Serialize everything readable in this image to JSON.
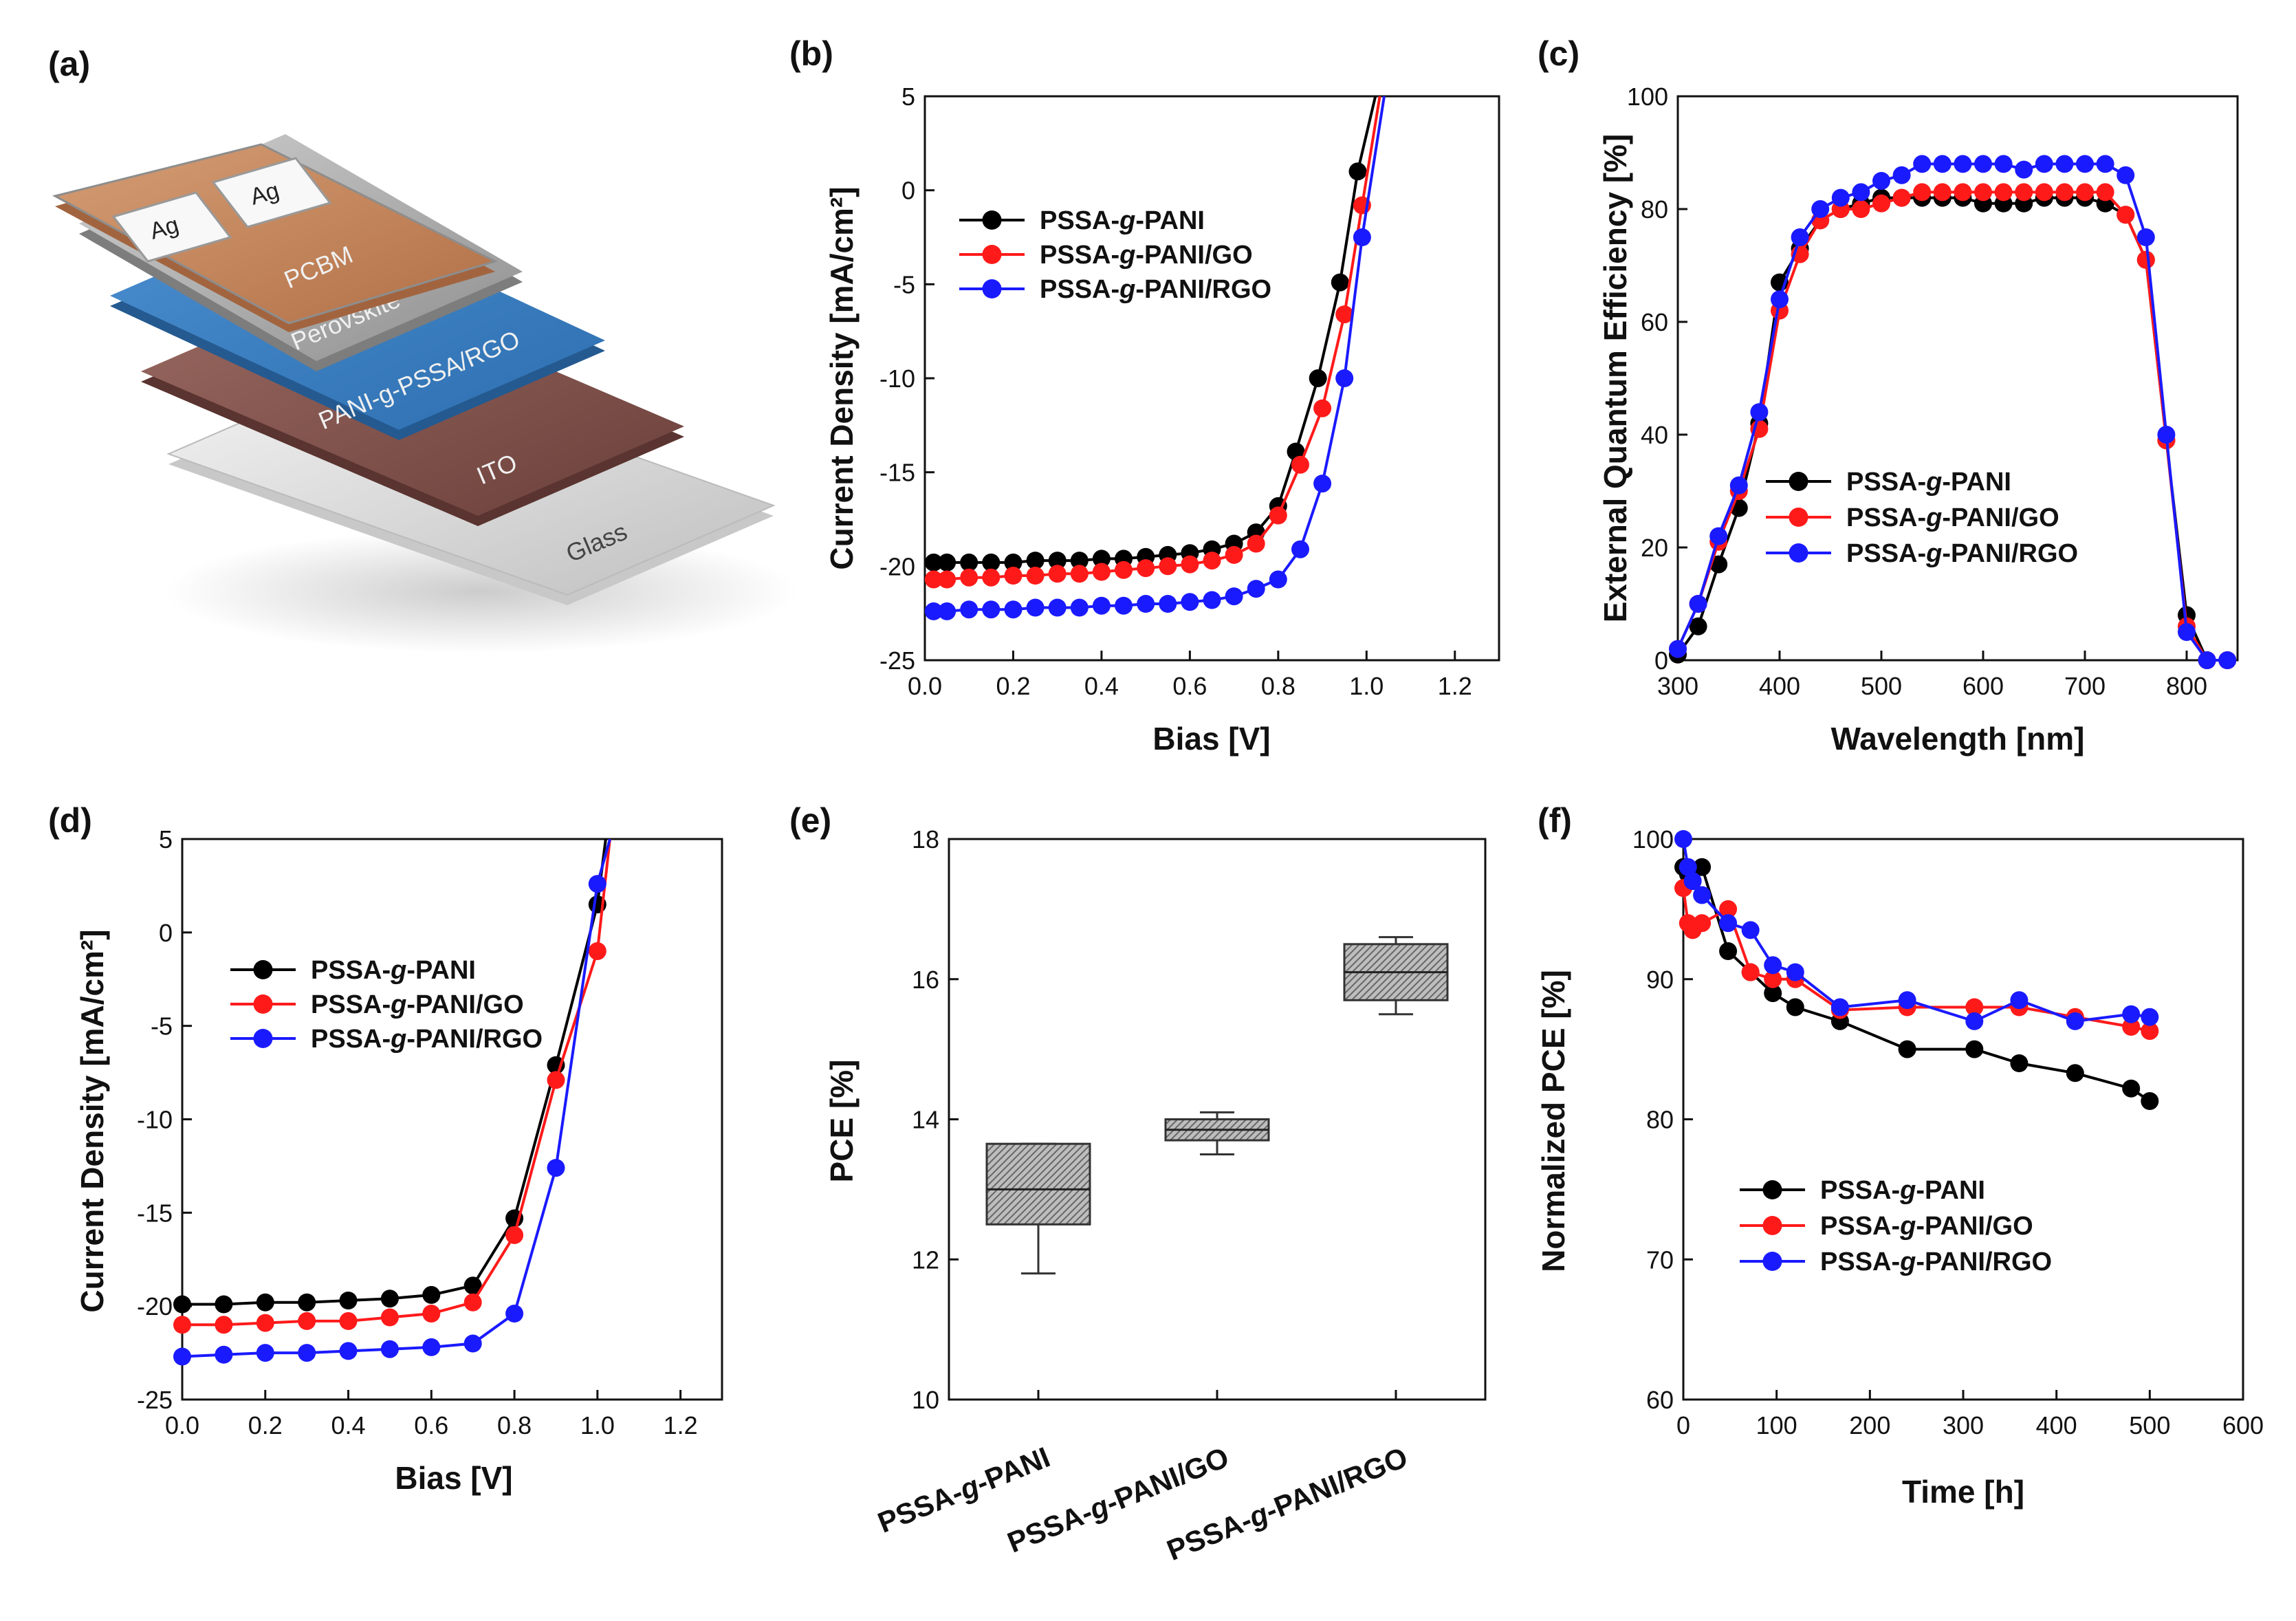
{
  "panels": {
    "a": "(a)",
    "b": "(b)",
    "c": "(c)",
    "d": "(d)",
    "e": "(e)",
    "f": "(f)"
  },
  "colors": {
    "black": "#000000",
    "red": "#ff1a1a",
    "blue": "#1a1aff",
    "box": "#b8b8b8"
  },
  "device": {
    "layers": [
      "Glass",
      "ITO",
      "PANI-g-PSSA/RGO",
      "Perovskite",
      "PCBM"
    ],
    "electrodes": [
      "Ag",
      "Ag"
    ]
  },
  "legend": {
    "s1_pre": "PSSA-",
    "s1_g": "g",
    "s1_post": "-PANI",
    "s2_pre": "PSSA-",
    "s2_g": "g",
    "s2_post": "-PANI/GO",
    "s3_pre": "PSSA-",
    "s3_g": "g",
    "s3_post": "-PANI/RGO"
  },
  "chart_data": [
    {
      "id": "b",
      "type": "line",
      "xlabel": "Bias [V]",
      "ylabel": "Current Density [mA/cm²]",
      "xlim": [
        0.0,
        1.3
      ],
      "ylim": [
        -25,
        5
      ],
      "xticks": [
        "0.0",
        "0.2",
        "0.4",
        "0.6",
        "0.8",
        "1.0",
        "1.2"
      ],
      "yticks": [
        "5",
        "0",
        "-5",
        "-10",
        "-15",
        "-20",
        "-25"
      ],
      "series": [
        {
          "name": "PSSA-g-PANI",
          "x": [
            0.02,
            0.05,
            0.1,
            0.15,
            0.2,
            0.25,
            0.3,
            0.35,
            0.4,
            0.45,
            0.5,
            0.55,
            0.6,
            0.65,
            0.7,
            0.75,
            0.8,
            0.84,
            0.89,
            0.94,
            0.98,
            1.02
          ],
          "y": [
            -19.8,
            -19.8,
            -19.8,
            -19.8,
            -19.8,
            -19.7,
            -19.7,
            -19.7,
            -19.6,
            -19.6,
            -19.5,
            -19.4,
            -19.3,
            -19.1,
            -18.8,
            -18.2,
            -16.8,
            -13.9,
            -10.0,
            -4.9,
            1.0,
            5.0
          ]
        },
        {
          "name": "PSSA-g-PANI/GO",
          "x": [
            0.02,
            0.05,
            0.1,
            0.15,
            0.2,
            0.25,
            0.3,
            0.35,
            0.4,
            0.45,
            0.5,
            0.55,
            0.6,
            0.65,
            0.7,
            0.75,
            0.8,
            0.85,
            0.9,
            0.95,
            0.99,
            1.03
          ],
          "y": [
            -20.7,
            -20.7,
            -20.6,
            -20.6,
            -20.5,
            -20.5,
            -20.4,
            -20.4,
            -20.3,
            -20.2,
            -20.1,
            -20.0,
            -19.9,
            -19.7,
            -19.4,
            -18.8,
            -17.3,
            -14.6,
            -11.6,
            -6.6,
            -0.8,
            5.0
          ]
        },
        {
          "name": "PSSA-g-PANI/RGO",
          "x": [
            0.02,
            0.05,
            0.1,
            0.15,
            0.2,
            0.25,
            0.3,
            0.35,
            0.4,
            0.45,
            0.5,
            0.55,
            0.6,
            0.65,
            0.7,
            0.75,
            0.8,
            0.85,
            0.9,
            0.95,
            0.99,
            1.04
          ],
          "y": [
            -22.4,
            -22.4,
            -22.3,
            -22.3,
            -22.3,
            -22.2,
            -22.2,
            -22.2,
            -22.1,
            -22.1,
            -22.0,
            -22.0,
            -21.9,
            -21.8,
            -21.6,
            -21.2,
            -20.7,
            -19.1,
            -15.6,
            -10.0,
            -2.5,
            5.0
          ]
        }
      ]
    },
    {
      "id": "c",
      "type": "line",
      "xlabel": "Wavelength [nm]",
      "ylabel": "External Quantum Efficiency [%]",
      "xlim": [
        300,
        850
      ],
      "ylim": [
        0,
        100
      ],
      "xticks": [
        "300",
        "400",
        "500",
        "600",
        "700",
        "800"
      ],
      "yticks": [
        "0",
        "20",
        "40",
        "60",
        "80",
        "100"
      ],
      "series": [
        {
          "name": "PSSA-g-PANI",
          "x": [
            300,
            320,
            340,
            360,
            380,
            400,
            420,
            440,
            460,
            480,
            500,
            520,
            540,
            560,
            580,
            600,
            620,
            640,
            660,
            680,
            700,
            720,
            740,
            760,
            780,
            800,
            820,
            840
          ],
          "y": [
            1,
            6,
            17,
            27,
            42,
            67,
            73,
            78,
            80,
            81,
            82,
            82,
            82,
            82,
            82,
            81,
            81,
            81,
            82,
            82,
            82,
            81,
            79,
            71,
            39,
            8,
            0,
            0
          ]
        },
        {
          "name": "PSSA-g-PANI/GO",
          "x": [
            300,
            320,
            340,
            360,
            380,
            400,
            420,
            440,
            460,
            480,
            500,
            520,
            540,
            560,
            580,
            600,
            620,
            640,
            660,
            680,
            700,
            720,
            740,
            760,
            780,
            800,
            820,
            840
          ],
          "y": [
            2,
            10,
            21,
            30,
            41,
            62,
            72,
            78,
            80,
            80,
            81,
            82,
            83,
            83,
            83,
            83,
            83,
            83,
            83,
            83,
            83,
            83,
            79,
            71,
            39,
            6,
            0,
            0
          ]
        },
        {
          "name": "PSSA-g-PANI/RGO",
          "x": [
            300,
            320,
            340,
            360,
            380,
            400,
            420,
            440,
            460,
            480,
            500,
            520,
            540,
            560,
            580,
            600,
            620,
            640,
            660,
            680,
            700,
            720,
            740,
            760,
            780,
            800,
            820,
            840
          ],
          "y": [
            2,
            10,
            22,
            31,
            44,
            64,
            75,
            80,
            82,
            83,
            85,
            86,
            88,
            88,
            88,
            88,
            88,
            87,
            88,
            88,
            88,
            88,
            86,
            75,
            40,
            5,
            0,
            0
          ]
        }
      ]
    },
    {
      "id": "d",
      "type": "line",
      "xlabel": "Bias [V]",
      "ylabel": "Current Density [mA/cm²]",
      "xlim": [
        0.0,
        1.3
      ],
      "ylim": [
        -25,
        5
      ],
      "xticks": [
        "0.0",
        "0.2",
        "0.4",
        "0.6",
        "0.8",
        "1.0",
        "1.2"
      ],
      "yticks": [
        "5",
        "0",
        "-5",
        "-10",
        "-15",
        "-20",
        "-25"
      ],
      "series": [
        {
          "name": "PSSA-g-PANI",
          "x": [
            0.0,
            0.1,
            0.2,
            0.3,
            0.4,
            0.5,
            0.6,
            0.7,
            0.8,
            0.9,
            1.0,
            1.02
          ],
          "y": [
            -19.9,
            -19.9,
            -19.8,
            -19.8,
            -19.7,
            -19.6,
            -19.4,
            -18.9,
            -15.3,
            -7.1,
            1.5,
            5.0
          ]
        },
        {
          "name": "PSSA-g-PANI/GO",
          "x": [
            0.0,
            0.1,
            0.2,
            0.3,
            0.4,
            0.5,
            0.6,
            0.7,
            0.8,
            0.9,
            1.0,
            1.03
          ],
          "y": [
            -21.0,
            -21.0,
            -20.9,
            -20.8,
            -20.8,
            -20.6,
            -20.4,
            -19.8,
            -16.2,
            -7.9,
            -1.0,
            5.0
          ]
        },
        {
          "name": "PSSA-g-PANI/RGO",
          "x": [
            0.0,
            0.1,
            0.2,
            0.3,
            0.4,
            0.5,
            0.6,
            0.7,
            0.8,
            0.9,
            1.0,
            1.03
          ],
          "y": [
            -22.7,
            -22.6,
            -22.5,
            -22.5,
            -22.4,
            -22.3,
            -22.2,
            -22.0,
            -20.4,
            -12.6,
            2.6,
            5.0
          ]
        }
      ]
    },
    {
      "id": "e",
      "type": "box",
      "ylabel": "PCE [%]",
      "ylim": [
        10,
        18
      ],
      "yticks": [
        "10",
        "12",
        "14",
        "16",
        "18"
      ],
      "categories": [
        "PSSA-g-PANI",
        "PSSA-g-PANI/GO",
        "PSSA-g-PANI/RGO"
      ],
      "boxes": [
        {
          "min": 11.8,
          "q1": 12.5,
          "median": 13.0,
          "q3": 13.65,
          "max": 13.65
        },
        {
          "min": 13.5,
          "q1": 13.7,
          "median": 13.85,
          "q3": 14.0,
          "max": 14.1
        },
        {
          "min": 15.5,
          "q1": 15.7,
          "median": 16.1,
          "q3": 16.5,
          "max": 16.6
        }
      ]
    },
    {
      "id": "f",
      "type": "line",
      "xlabel": "Time [h]",
      "ylabel": "Normalized PCE [%]",
      "xlim": [
        0,
        600
      ],
      "ylim": [
        60,
        100
      ],
      "xticks": [
        "0",
        "100",
        "200",
        "300",
        "400",
        "500",
        "600"
      ],
      "yticks": [
        "60",
        "70",
        "80",
        "90",
        "100"
      ],
      "series": [
        {
          "name": "PSSA-g-PANI",
          "x": [
            0,
            5,
            10,
            20,
            48,
            72,
            96,
            120,
            168,
            240,
            312,
            360,
            420,
            480,
            500
          ],
          "y": [
            98,
            97.5,
            97,
            98,
            92,
            90.5,
            89,
            88,
            87,
            85,
            85,
            84,
            83.3,
            82.2,
            81.3
          ]
        },
        {
          "name": "PSSA-g-PANI/GO",
          "x": [
            0,
            5,
            10,
            20,
            48,
            72,
            96,
            120,
            168,
            240,
            312,
            360,
            420,
            480,
            500
          ],
          "y": [
            96.5,
            94,
            93.5,
            94,
            95,
            90.5,
            90,
            90,
            87.8,
            88,
            88,
            88,
            87.3,
            86.6,
            86.3
          ]
        },
        {
          "name": "PSSA-g-PANI/RGO",
          "x": [
            0,
            5,
            10,
            20,
            48,
            72,
            96,
            120,
            168,
            240,
            312,
            360,
            420,
            480,
            500
          ],
          "y": [
            100,
            98,
            97,
            96,
            94,
            93.5,
            91,
            90.5,
            88,
            88.5,
            87,
            88.5,
            87,
            87.5,
            87.3
          ]
        }
      ]
    }
  ]
}
